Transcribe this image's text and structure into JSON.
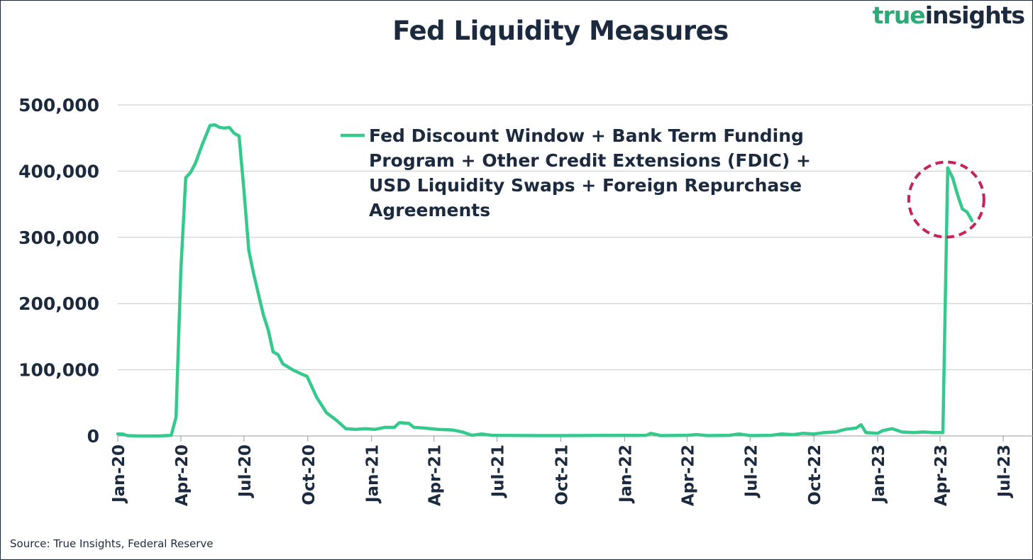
{
  "header": {
    "title": "Fed Liquidity Measures",
    "brand_part1": "true",
    "brand_part2": "insights"
  },
  "footer": {
    "source": "Source: True Insights, Federal Reserve"
  },
  "colors": {
    "line": "#35c98d",
    "text": "#1b2a3e",
    "grid": "#c8c8c8",
    "highlight_circle": "#c4235b",
    "brand_accent": "#2fa877"
  },
  "chart_data": {
    "type": "line",
    "title": "Fed Liquidity Measures",
    "xlabel": "",
    "ylabel": "",
    "ylim": [
      0,
      500000
    ],
    "yticks": [
      0,
      100000,
      200000,
      300000,
      400000,
      500000
    ],
    "ytick_labels": [
      "0",
      "100,000",
      "200,000",
      "300,000",
      "400,000",
      "500,000"
    ],
    "xticks": [
      "2020-01",
      "2020-04",
      "2020-07",
      "2020-10",
      "2021-01",
      "2021-04",
      "2021-07",
      "2021-10",
      "2022-01",
      "2022-04",
      "2022-07",
      "2022-10",
      "2023-01",
      "2023-04",
      "2023-07"
    ],
    "xtick_labels": [
      "Jan-20",
      "Apr-20",
      "Jul-20",
      "Oct-20",
      "Jan-21",
      "Apr-21",
      "Jul-21",
      "Oct-21",
      "Jan-22",
      "Apr-22",
      "Jul-22",
      "Oct-22",
      "Jan-23",
      "Apr-23",
      "Jul-23"
    ],
    "xlim": [
      "2020-01-01",
      "2023-07-01"
    ],
    "grid": true,
    "legend_position": "top-center",
    "annotations": [
      {
        "type": "dashed-circle",
        "x": "2023-04-10",
        "y": 357000,
        "note": "highlights recent spike"
      }
    ],
    "series": [
      {
        "name": "Fed Discount Window + Bank Term Funding Program + Other Credit Extensions (FDIC) + USD Liquidity Swaps + Foreign Repurchase Agreements",
        "points": [
          [
            "2020-01-01",
            3000
          ],
          [
            "2020-01-08",
            3000
          ],
          [
            "2020-01-15",
            500
          ],
          [
            "2020-02-01",
            0
          ],
          [
            "2020-03-01",
            0
          ],
          [
            "2020-03-18",
            1000
          ],
          [
            "2020-03-25",
            28000
          ],
          [
            "2020-04-01",
            250000
          ],
          [
            "2020-04-08",
            390000
          ],
          [
            "2020-04-15",
            398000
          ],
          [
            "2020-04-22",
            412000
          ],
          [
            "2020-05-01",
            438000
          ],
          [
            "2020-05-13",
            469000
          ],
          [
            "2020-05-20",
            470000
          ],
          [
            "2020-05-27",
            466000
          ],
          [
            "2020-06-03",
            465000
          ],
          [
            "2020-06-10",
            466000
          ],
          [
            "2020-06-17",
            457000
          ],
          [
            "2020-06-24",
            453000
          ],
          [
            "2020-07-01",
            370000
          ],
          [
            "2020-07-08",
            280000
          ],
          [
            "2020-07-15",
            245000
          ],
          [
            "2020-07-29",
            183000
          ],
          [
            "2020-08-05",
            160000
          ],
          [
            "2020-08-12",
            127000
          ],
          [
            "2020-08-19",
            123000
          ],
          [
            "2020-08-26",
            109000
          ],
          [
            "2020-09-09",
            100000
          ],
          [
            "2020-09-23",
            93000
          ],
          [
            "2020-09-30",
            90000
          ],
          [
            "2020-10-14",
            58000
          ],
          [
            "2020-10-28",
            35000
          ],
          [
            "2020-11-11",
            24000
          ],
          [
            "2020-11-25",
            11000
          ],
          [
            "2020-12-09",
            10000
          ],
          [
            "2020-12-23",
            11000
          ],
          [
            "2021-01-06",
            10000
          ],
          [
            "2021-01-20",
            13000
          ],
          [
            "2021-02-03",
            13000
          ],
          [
            "2021-02-10",
            20000
          ],
          [
            "2021-02-24",
            19000
          ],
          [
            "2021-03-03",
            13000
          ],
          [
            "2021-03-17",
            12000
          ],
          [
            "2021-04-07",
            10000
          ],
          [
            "2021-04-28",
            9000
          ],
          [
            "2021-05-12",
            6000
          ],
          [
            "2021-05-26",
            1000
          ],
          [
            "2021-06-09",
            3000
          ],
          [
            "2021-06-23",
            1000
          ],
          [
            "2021-09-01",
            500
          ],
          [
            "2021-10-01",
            500
          ],
          [
            "2021-12-01",
            800
          ],
          [
            "2022-01-15",
            800
          ],
          [
            "2022-02-01",
            1000
          ],
          [
            "2022-02-08",
            4000
          ],
          [
            "2022-02-22",
            500
          ],
          [
            "2022-04-01",
            1000
          ],
          [
            "2022-04-15",
            2000
          ],
          [
            "2022-05-01",
            500
          ],
          [
            "2022-06-01",
            1000
          ],
          [
            "2022-06-15",
            3000
          ],
          [
            "2022-07-01",
            500
          ],
          [
            "2022-08-01",
            1000
          ],
          [
            "2022-08-15",
            3000
          ],
          [
            "2022-09-01",
            2000
          ],
          [
            "2022-09-15",
            4000
          ],
          [
            "2022-10-01",
            3000
          ],
          [
            "2022-10-15",
            5000
          ],
          [
            "2022-11-01",
            6000
          ],
          [
            "2022-11-15",
            10000
          ],
          [
            "2022-12-01",
            12000
          ],
          [
            "2022-12-08",
            17000
          ],
          [
            "2022-12-15",
            5000
          ],
          [
            "2023-01-01",
            4000
          ],
          [
            "2023-01-08",
            8000
          ],
          [
            "2023-01-22",
            11000
          ],
          [
            "2023-02-05",
            6000
          ],
          [
            "2023-02-22",
            5000
          ],
          [
            "2023-03-08",
            6000
          ],
          [
            "2023-03-22",
            5000
          ],
          [
            "2023-04-05",
            5000
          ],
          [
            "2023-04-12",
            405000
          ],
          [
            "2023-04-19",
            390000
          ],
          [
            "2023-04-26",
            365000
          ],
          [
            "2023-05-03",
            343000
          ],
          [
            "2023-05-10",
            338000
          ],
          [
            "2023-05-17",
            325000
          ]
        ]
      }
    ]
  }
}
